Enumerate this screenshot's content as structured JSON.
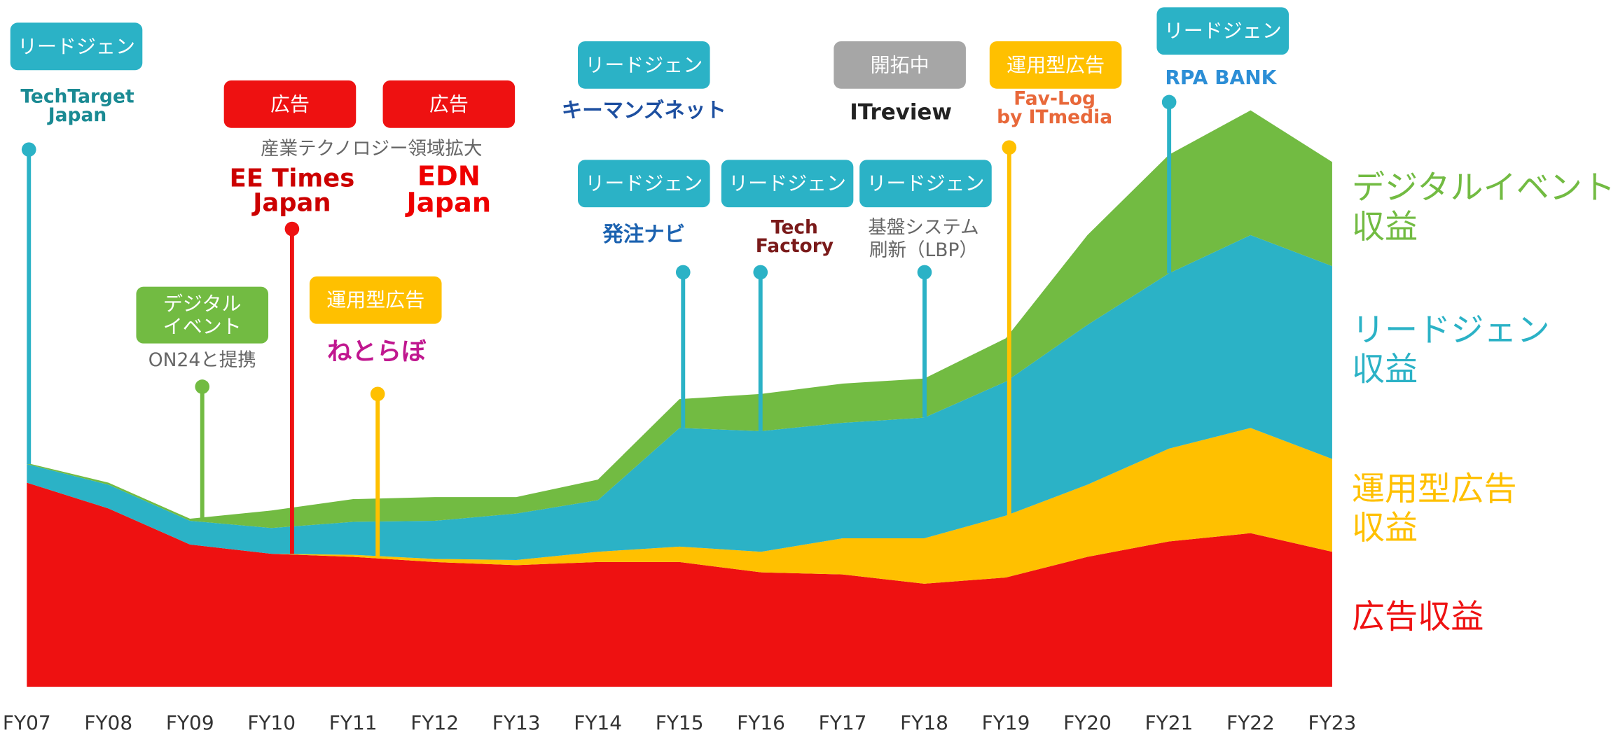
{
  "chart_data": {
    "type": "stacked_area",
    "categories": [
      "FY07",
      "FY08",
      "FY09",
      "FY10",
      "FY11",
      "FY12",
      "FY13",
      "FY14",
      "FY15",
      "FY16",
      "FY17",
      "FY18",
      "FY19",
      "FY20",
      "FY21",
      "FY22",
      "FY23"
    ],
    "ylim": [
      0,
      666
    ],
    "series": [
      {
        "name": "広告収益",
        "color": "#ee1111",
        "values": [
          198,
          173,
          138,
          129,
          126,
          121,
          118,
          121,
          121,
          111,
          109,
          100,
          106,
          126,
          141,
          149,
          131
        ]
      },
      {
        "name": "運用型広告\n収益",
        "color": "#ffc000",
        "values": [
          0,
          0,
          0,
          0,
          2,
          3,
          5,
          10,
          15,
          20,
          35,
          44,
          60,
          70,
          90,
          102,
          90
        ]
      },
      {
        "name": "リードジェン\n収益",
        "color": "#2bb2c6",
        "values": [
          18,
          23,
          23,
          25,
          32,
          37,
          45,
          50,
          115,
          117,
          112,
          117,
          130,
          155,
          170,
          187,
          187
        ]
      },
      {
        "name": "デジタルイベント\n収益",
        "color": "#72bb42",
        "values": [
          1,
          2,
          2,
          17,
          22,
          23,
          16,
          20,
          28,
          36,
          38,
          38,
          42,
          87,
          115,
          121,
          101
        ]
      }
    ],
    "annotations": [
      {
        "tag": "リードジェン",
        "color": "#2bb2c6",
        "logo": "TechTarget\nJapan"
      },
      {
        "tag": "広告",
        "color": "#ee1111",
        "logo": "EE Times\nJapan",
        "description": "産業テクノロジー領域拡大"
      },
      {
        "tag": "広告",
        "color": "#ee1111",
        "logo": "EDN\nJapan"
      },
      {
        "tag": "デジタル\nイベント",
        "color": "#72bb42",
        "description": "ON24と提携"
      },
      {
        "tag": "運用型広告",
        "color": "#ffc000",
        "logo": "ねとらぼ"
      },
      {
        "tag": "リードジェン",
        "color": "#2bb2c6",
        "logo": "キーマンズネット"
      },
      {
        "tag": "リードジェン",
        "color": "#2bb2c6",
        "logo": "発注ナビ"
      },
      {
        "tag": "リードジェン",
        "color": "#2bb2c6",
        "logo": "Tech\nFactory"
      },
      {
        "tag": "リードジェン",
        "color": "#2bb2c6",
        "description": "基盤システム\n刷新（LBP）"
      },
      {
        "tag": "開拓中",
        "color": "#a6a6a6",
        "logo": "ITreview"
      },
      {
        "tag": "運用型広告",
        "color": "#ffc000",
        "logo": "Fav-Log\nby ITmedia"
      },
      {
        "tag": "リードジェン",
        "color": "#2bb2c6",
        "logo": "RPA BANK"
      }
    ]
  }
}
